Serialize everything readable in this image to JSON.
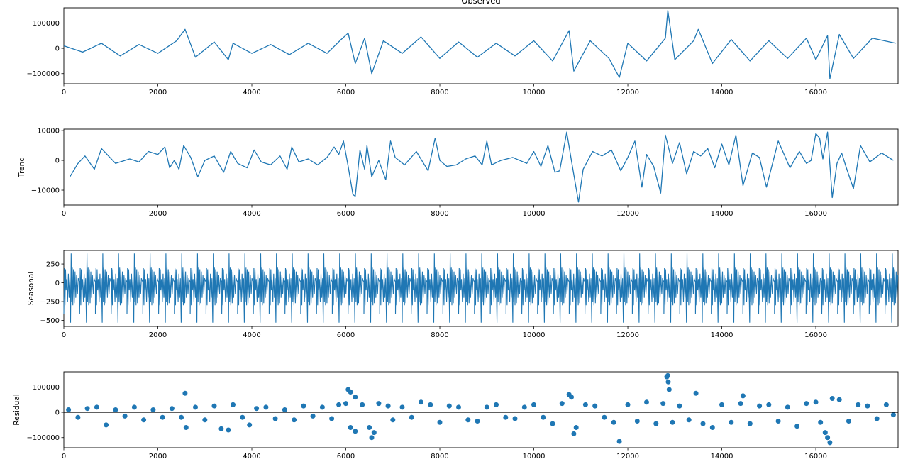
{
  "chart_data": [
    {
      "type": "line",
      "title": "Observed",
      "ylabel": "",
      "xlim": [
        0,
        17750
      ],
      "ylim": [
        -140000,
        160000
      ],
      "xticks": [
        0,
        2000,
        4000,
        6000,
        8000,
        10000,
        12000,
        14000,
        16000
      ],
      "xtick_labels": [
        "0",
        "2000",
        "4000",
        "6000",
        "8000",
        "10000",
        "12000",
        "14000",
        "16000"
      ],
      "yticks": [
        100000,
        0,
        -100000
      ],
      "ytick_labels": [
        "100000",
        "0",
        "−100000"
      ],
      "color": "#1f77b4",
      "series": [
        {
          "x": [
            0,
            400,
            800,
            1200,
            1600,
            2000,
            2400,
            2580,
            2800,
            3200,
            3500,
            3600,
            4000,
            4400,
            4800,
            5200,
            5600,
            5900,
            6050,
            6200,
            6400,
            6550,
            6800,
            7200,
            7600,
            8000,
            8400,
            8800,
            9200,
            9600,
            10000,
            10400,
            10750,
            10850,
            11200,
            11600,
            11820,
            12000,
            12400,
            12800,
            12850,
            13000,
            13400,
            13500,
            13800,
            14200,
            14600,
            15000,
            15400,
            15800,
            16000,
            16250,
            16300,
            16500,
            16800,
            17200,
            17700
          ],
          "y": [
            10000,
            -15000,
            20000,
            -30000,
            15000,
            -20000,
            30000,
            75000,
            -35000,
            25000,
            -45000,
            20000,
            -20000,
            15000,
            -25000,
            20000,
            -20000,
            35000,
            60000,
            -60000,
            40000,
            -100000,
            30000,
            -20000,
            45000,
            -40000,
            25000,
            -35000,
            20000,
            -30000,
            30000,
            -50000,
            70000,
            -90000,
            30000,
            -40000,
            -115000,
            20000,
            -50000,
            40000,
            150000,
            -45000,
            30000,
            75000,
            -60000,
            35000,
            -50000,
            30000,
            -40000,
            40000,
            -45000,
            50000,
            -120000,
            55000,
            -40000,
            40000,
            20000
          ]
        }
      ]
    },
    {
      "type": "line",
      "title": "",
      "ylabel": "Trend",
      "xlim": [
        0,
        17750
      ],
      "ylim": [
        -15000,
        10500
      ],
      "xticks": [
        0,
        2000,
        4000,
        6000,
        8000,
        10000,
        12000,
        14000,
        16000
      ],
      "xtick_labels": [
        "0",
        "2000",
        "4000",
        "6000",
        "8000",
        "10000",
        "12000",
        "14000",
        "16000"
      ],
      "yticks": [
        10000,
        0,
        -10000
      ],
      "ytick_labels": [
        "10000",
        "0",
        "−10000"
      ],
      "color": "#1f77b4",
      "series": [
        {
          "x": [
            130,
            300,
            450,
            650,
            800,
            1100,
            1400,
            1600,
            1800,
            2000,
            2150,
            2250,
            2350,
            2450,
            2550,
            2700,
            2850,
            3000,
            3200,
            3400,
            3550,
            3700,
            3900,
            4050,
            4200,
            4400,
            4600,
            4750,
            4850,
            5000,
            5200,
            5400,
            5600,
            5750,
            5850,
            5950,
            6050,
            6150,
            6200,
            6300,
            6400,
            6450,
            6550,
            6700,
            6850,
            6950,
            7050,
            7250,
            7500,
            7750,
            7900,
            8000,
            8150,
            8350,
            8550,
            8750,
            8900,
            9000,
            9100,
            9300,
            9550,
            9850,
            10000,
            10150,
            10300,
            10450,
            10550,
            10700,
            10800,
            10950,
            11050,
            11250,
            11450,
            11650,
            11850,
            12000,
            12150,
            12300,
            12400,
            12550,
            12700,
            12800,
            12950,
            13100,
            13250,
            13400,
            13550,
            13700,
            13850,
            14000,
            14150,
            14300,
            14450,
            14650,
            14800,
            14950,
            15200,
            15450,
            15650,
            15800,
            15900,
            16000,
            16080,
            16150,
            16250,
            16350,
            16450,
            16550,
            16650,
            16800,
            16950,
            17150,
            17400,
            17650
          ],
          "y": [
            -5500,
            -1000,
            1500,
            -3000,
            4000,
            -1000,
            500,
            -500,
            3000,
            2000,
            4500,
            -2500,
            0,
            -3000,
            5000,
            1000,
            -5500,
            0,
            1500,
            -4000,
            3000,
            -1000,
            -2500,
            3500,
            -500,
            -1500,
            1500,
            -3000,
            4500,
            -500,
            500,
            -1500,
            1000,
            4500,
            2000,
            6500,
            -2000,
            -11500,
            -12000,
            3500,
            -3000,
            5000,
            -5500,
            0,
            -6500,
            6500,
            1000,
            -1500,
            3000,
            -3500,
            7500,
            0,
            -2000,
            -1500,
            500,
            1500,
            -1500,
            6500,
            -1500,
            0,
            1000,
            -1000,
            3000,
            -2000,
            5000,
            -4000,
            -3500,
            9500,
            0,
            -14000,
            -3000,
            3000,
            1500,
            3500,
            -3500,
            1000,
            6500,
            -9000,
            2000,
            -2000,
            -11000,
            8500,
            -1000,
            6000,
            -4500,
            3000,
            1500,
            4000,
            -2500,
            5500,
            -1500,
            8500,
            -8500,
            2500,
            1000,
            -9000,
            6500,
            -2500,
            3000,
            -1000,
            0,
            9000,
            7500,
            500,
            9500,
            -12500,
            -1000,
            2500,
            -2500,
            -9500,
            5000,
            -500,
            2500,
            0
          ]
        }
      ]
    },
    {
      "type": "line",
      "title": "",
      "ylabel": "Seasonal",
      "xlim": [
        0,
        17750
      ],
      "ylim": [
        -580,
        430
      ],
      "xticks": [
        0,
        2000,
        4000,
        6000,
        8000,
        10000,
        12000,
        14000,
        16000
      ],
      "xtick_labels": [
        "0",
        "2000",
        "4000",
        "6000",
        "8000",
        "10000",
        "12000",
        "14000",
        "16000"
      ],
      "yticks": [
        250,
        0,
        -250,
        -500
      ],
      "ytick_labels": [
        "250",
        "0",
        "−250",
        "−500"
      ],
      "color": "#1f77b4",
      "period": 336,
      "cycles": 53,
      "cycle_pattern": [
        {
          "dx": 0,
          "y": -420
        },
        {
          "dx": 12,
          "y": 200
        },
        {
          "dx": 24,
          "y": -300
        },
        {
          "dx": 36,
          "y": 180
        },
        {
          "dx": 48,
          "y": -100
        },
        {
          "dx": 62,
          "y": 50
        },
        {
          "dx": 80,
          "y": -250
        },
        {
          "dx": 96,
          "y": 120
        },
        {
          "dx": 112,
          "y": -200
        },
        {
          "dx": 128,
          "y": 60
        },
        {
          "dx": 144,
          "y": -530
        },
        {
          "dx": 156,
          "y": 390
        },
        {
          "dx": 168,
          "y": -250
        },
        {
          "dx": 180,
          "y": 210
        },
        {
          "dx": 192,
          "y": -300
        },
        {
          "dx": 206,
          "y": 180
        },
        {
          "dx": 222,
          "y": -270
        },
        {
          "dx": 238,
          "y": 150
        },
        {
          "dx": 254,
          "y": -200
        },
        {
          "dx": 272,
          "y": 100
        },
        {
          "dx": 290,
          "y": -150
        },
        {
          "dx": 306,
          "y": 60
        },
        {
          "dx": 322,
          "y": 30
        },
        {
          "dx": 336,
          "y": 10
        }
      ]
    },
    {
      "type": "scatter",
      "title": "",
      "ylabel": "Residual",
      "xlim": [
        0,
        17750
      ],
      "ylim": [
        -140000,
        160000
      ],
      "xticks": [
        0,
        2000,
        4000,
        6000,
        8000,
        10000,
        12000,
        14000,
        16000
      ],
      "xtick_labels": [
        "0",
        "2000",
        "4000",
        "6000",
        "8000",
        "10000",
        "12000",
        "14000",
        "16000"
      ],
      "yticks": [
        100000,
        0,
        -100000
      ],
      "ytick_labels": [
        "100000",
        "0",
        "−100000"
      ],
      "color": "#1f77b4",
      "baseline": 0,
      "points": [
        [
          100,
          10000
        ],
        [
          300,
          -20000
        ],
        [
          500,
          15000
        ],
        [
          700,
          20000
        ],
        [
          900,
          -50000
        ],
        [
          1100,
          10000
        ],
        [
          1300,
          -15000
        ],
        [
          1500,
          20000
        ],
        [
          1700,
          -30000
        ],
        [
          1900,
          10000
        ],
        [
          2100,
          -20000
        ],
        [
          2300,
          15000
        ],
        [
          2500,
          -20000
        ],
        [
          2580,
          75000
        ],
        [
          2600,
          -60000
        ],
        [
          2800,
          20000
        ],
        [
          3000,
          -30000
        ],
        [
          3200,
          25000
        ],
        [
          3350,
          -65000
        ],
        [
          3500,
          -70000
        ],
        [
          3600,
          30000
        ],
        [
          3800,
          -20000
        ],
        [
          3950,
          -50000
        ],
        [
          4100,
          15000
        ],
        [
          4300,
          20000
        ],
        [
          4500,
          -25000
        ],
        [
          4700,
          10000
        ],
        [
          4900,
          -30000
        ],
        [
          5100,
          25000
        ],
        [
          5300,
          -15000
        ],
        [
          5500,
          20000
        ],
        [
          5700,
          -25000
        ],
        [
          5850,
          30000
        ],
        [
          6000,
          35000
        ],
        [
          6050,
          90000
        ],
        [
          6100,
          80000
        ],
        [
          6100,
          -60000
        ],
        [
          6200,
          60000
        ],
        [
          6200,
          -75000
        ],
        [
          6350,
          30000
        ],
        [
          6500,
          -60000
        ],
        [
          6550,
          -100000
        ],
        [
          6600,
          -80000
        ],
        [
          6700,
          35000
        ],
        [
          6900,
          25000
        ],
        [
          7000,
          -30000
        ],
        [
          7200,
          20000
        ],
        [
          7400,
          -20000
        ],
        [
          7600,
          40000
        ],
        [
          7800,
          30000
        ],
        [
          8000,
          -40000
        ],
        [
          8200,
          25000
        ],
        [
          8400,
          20000
        ],
        [
          8600,
          -30000
        ],
        [
          8800,
          -35000
        ],
        [
          9000,
          20000
        ],
        [
          9200,
          30000
        ],
        [
          9400,
          -20000
        ],
        [
          9600,
          -25000
        ],
        [
          9800,
          20000
        ],
        [
          10000,
          30000
        ],
        [
          10200,
          -20000
        ],
        [
          10400,
          -45000
        ],
        [
          10600,
          35000
        ],
        [
          10750,
          70000
        ],
        [
          10800,
          60000
        ],
        [
          10850,
          -85000
        ],
        [
          10900,
          -60000
        ],
        [
          11100,
          30000
        ],
        [
          11300,
          25000
        ],
        [
          11500,
          -20000
        ],
        [
          11700,
          -40000
        ],
        [
          11820,
          -115000
        ],
        [
          12000,
          30000
        ],
        [
          12200,
          -35000
        ],
        [
          12400,
          40000
        ],
        [
          12600,
          -45000
        ],
        [
          12750,
          35000
        ],
        [
          12830,
          140000
        ],
        [
          12850,
          145000
        ],
        [
          12860,
          120000
        ],
        [
          12880,
          90000
        ],
        [
          12950,
          -40000
        ],
        [
          13100,
          25000
        ],
        [
          13300,
          -30000
        ],
        [
          13450,
          75000
        ],
        [
          13600,
          -45000
        ],
        [
          13800,
          -60000
        ],
        [
          14000,
          30000
        ],
        [
          14200,
          -40000
        ],
        [
          14400,
          35000
        ],
        [
          14450,
          65000
        ],
        [
          14600,
          -45000
        ],
        [
          14800,
          25000
        ],
        [
          15000,
          30000
        ],
        [
          15200,
          -35000
        ],
        [
          15400,
          20000
        ],
        [
          15600,
          -55000
        ],
        [
          15800,
          35000
        ],
        [
          16000,
          40000
        ],
        [
          16100,
          -40000
        ],
        [
          16200,
          -80000
        ],
        [
          16250,
          -100000
        ],
        [
          16300,
          -120000
        ],
        [
          16350,
          55000
        ],
        [
          16500,
          50000
        ],
        [
          16700,
          -35000
        ],
        [
          16900,
          30000
        ],
        [
          17100,
          25000
        ],
        [
          17300,
          -25000
        ],
        [
          17500,
          30000
        ],
        [
          17650,
          -10000
        ]
      ]
    }
  ]
}
